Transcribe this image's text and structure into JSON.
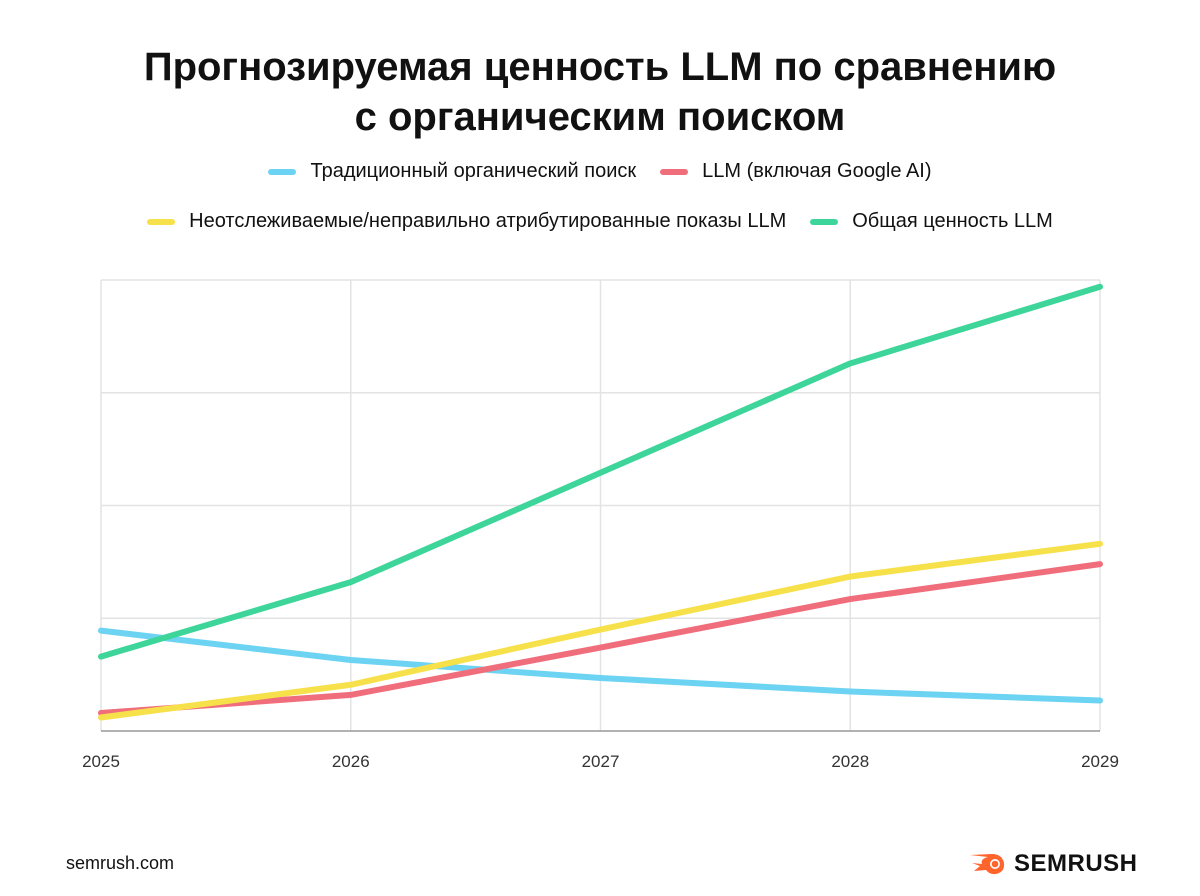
{
  "chart_data": {
    "type": "line",
    "title": "Прогнозируемая ценность LLM по сравнению с органическим поиском",
    "title_lines": [
      "Прогнозируемая ценность LLM по сравнению",
      "с органическим поиском"
    ],
    "x": [
      "2025",
      "2026",
      "2027",
      "2028",
      "2029"
    ],
    "ylim": [
      0,
      4
    ],
    "grid": true,
    "legend_placement": "top",
    "series": [
      {
        "name": "Традиционный органический поиск",
        "color": "#6dd3f2",
        "values": [
          0.89,
          0.63,
          0.47,
          0.35,
          0.27
        ]
      },
      {
        "name": "LLM (включая Google AI)",
        "color": "#f06e7c",
        "values": [
          0.16,
          0.32,
          0.74,
          1.17,
          1.48
        ]
      },
      {
        "name": "Неотслеживаемые/неправильно атрибутированные показы LLM",
        "color": "#f7e14a",
        "values": [
          0.12,
          0.41,
          0.9,
          1.37,
          1.66
        ]
      },
      {
        "name": "Общая ценность LLM",
        "color": "#3ed59a",
        "values": [
          0.66,
          1.32,
          2.29,
          3.26,
          3.94
        ]
      }
    ]
  },
  "footer": {
    "site": "semrush.com",
    "logo": "SEMRUSH",
    "logo_color": "#ff642d"
  }
}
